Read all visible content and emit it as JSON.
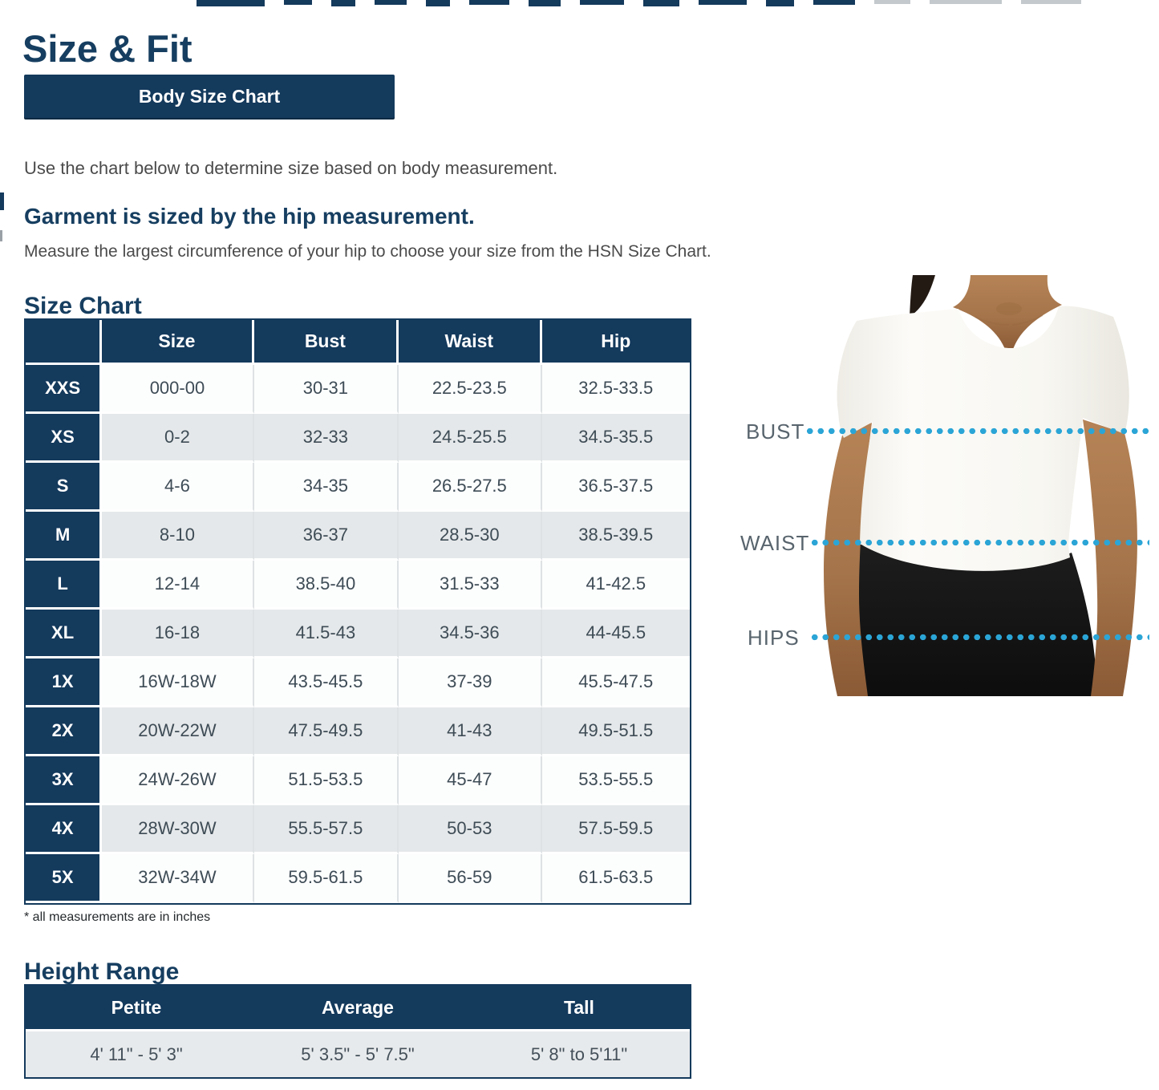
{
  "page": {
    "title": "Size & Fit"
  },
  "toolbar": {
    "body_size_chart_label": "Body Size Chart"
  },
  "intro": {
    "text": "Use the chart below to determine size based on body measurement."
  },
  "garment": {
    "heading": "Garment is sized by the hip measurement.",
    "subtext": "Measure the largest circumference of your hip to choose your size from the HSN Size Chart."
  },
  "size_chart": {
    "title": "Size Chart",
    "columns": [
      "",
      "Size",
      "Bust",
      "Waist",
      "Hip"
    ],
    "rows": [
      [
        "XXS",
        "000-00",
        "30-31",
        "22.5-23.5",
        "32.5-33.5"
      ],
      [
        "XS",
        "0-2",
        "32-33",
        "24.5-25.5",
        "34.5-35.5"
      ],
      [
        "S",
        "4-6",
        "34-35",
        "26.5-27.5",
        "36.5-37.5"
      ],
      [
        "M",
        "8-10",
        "36-37",
        "28.5-30",
        "38.5-39.5"
      ],
      [
        "L",
        "12-14",
        "38.5-40",
        "31.5-33",
        "41-42.5"
      ],
      [
        "XL",
        "16-18",
        "41.5-43",
        "34.5-36",
        "44-45.5"
      ],
      [
        "1X",
        "16W-18W",
        "43.5-45.5",
        "37-39",
        "45.5-47.5"
      ],
      [
        "2X",
        "20W-22W",
        "47.5-49.5",
        "41-43",
        "49.5-51.5"
      ],
      [
        "3X",
        "24W-26W",
        "51.5-53.5",
        "45-47",
        "53.5-55.5"
      ],
      [
        "4X",
        "28W-30W",
        "55.5-57.5",
        "50-53",
        "57.5-59.5"
      ],
      [
        "5X",
        "32W-34W",
        "59.5-61.5",
        "56-59",
        "61.5-63.5"
      ]
    ],
    "footnote": "* all measurements are in inches"
  },
  "height_range": {
    "title": "Height Range",
    "columns": [
      "Petite",
      "Average",
      "Tall"
    ],
    "values": [
      "4' 11\" - 5' 3\"",
      "5' 3.5\" - 5' 7.5\"",
      "5' 8\" to 5'11\""
    ]
  },
  "figure": {
    "labels": [
      "BUST",
      "WAIST",
      "HIPS"
    ]
  },
  "colors": {
    "navy": "#143A5C",
    "heading_text": "#163E60",
    "body_text": "#4B4B4B",
    "cell_text": "#3E4C56",
    "row_alt_gray": "#E5E8EA",
    "dot_cyan": "#2BA5D6",
    "figure_label_gray": "#58646D"
  }
}
